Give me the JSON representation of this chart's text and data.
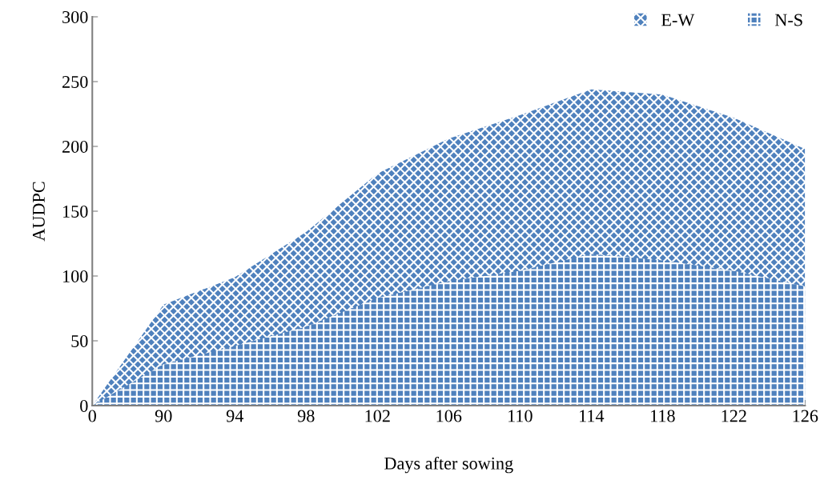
{
  "chart_data": {
    "type": "area",
    "xlabel": "Days after sowing",
    "ylabel": "AUDPC",
    "categories": [
      "0",
      "90",
      "94",
      "98",
      "102",
      "106",
      "110",
      "114",
      "118",
      "122",
      "126"
    ],
    "series": [
      {
        "name": "E-W",
        "color": "#4f81bd",
        "values": [
          0,
          78,
          99,
          134,
          179,
          206,
          224,
          244,
          240,
          222,
          198
        ]
      },
      {
        "name": "N-S",
        "color": "#4f81bd",
        "values": [
          0,
          32,
          46,
          61,
          83,
          96,
          104,
          117,
          112,
          104,
          92
        ]
      }
    ],
    "ylim": [
      0,
      300
    ],
    "yticks": [
      0,
      50,
      100,
      150,
      200,
      250,
      300
    ],
    "grid": false,
    "legend": "top right"
  }
}
